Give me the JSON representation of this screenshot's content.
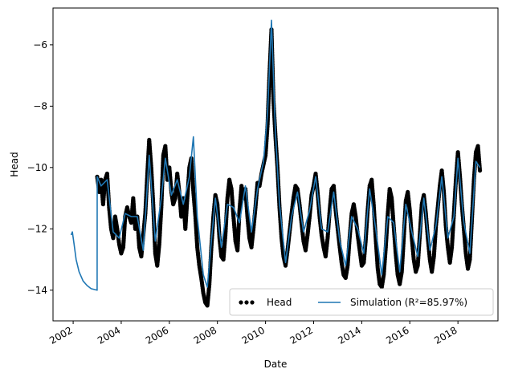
{
  "chart_data": {
    "type": "line",
    "xlabel": "Date",
    "ylabel": "Head",
    "x_range": [
      "2001-03-01",
      "2019-09-01"
    ],
    "ylim": [
      -15.0,
      -4.8
    ],
    "x_ticks": [
      "2002",
      "2004",
      "2006",
      "2008",
      "2010",
      "2012",
      "2014",
      "2016",
      "2018"
    ],
    "y_ticks": [
      -14,
      -12,
      -10,
      -8,
      -6
    ],
    "y_tick_labels": [
      "−14",
      "−12",
      "−10",
      "−8",
      "−6"
    ],
    "grid": false,
    "legend_position": "lower right",
    "colors": {
      "observed": "#000000",
      "simulation": "#1f77b4"
    },
    "series": [
      {
        "name": "Head",
        "style": "dots",
        "points": [
          [
            "2003-01-01",
            -10.3
          ],
          [
            "2003-02-01",
            -10.8
          ],
          [
            "2003-03-01",
            -10.4
          ],
          [
            "2003-04-01",
            -11.2
          ],
          [
            "2003-05-01",
            -10.4
          ],
          [
            "2003-06-01",
            -10.2
          ],
          [
            "2003-07-01",
            -11.3
          ],
          [
            "2003-08-01",
            -12.0
          ],
          [
            "2003-09-01",
            -12.3
          ],
          [
            "2003-10-01",
            -11.6
          ],
          [
            "2003-11-01",
            -12.0
          ],
          [
            "2003-12-01",
            -12.5
          ],
          [
            "2004-01-01",
            -12.8
          ],
          [
            "2004-02-01",
            -12.6
          ],
          [
            "2004-03-01",
            -11.6
          ],
          [
            "2004-04-01",
            -11.3
          ],
          [
            "2004-05-01",
            -11.6
          ],
          [
            "2004-06-01",
            -11.8
          ],
          [
            "2004-07-01",
            -11.0
          ],
          [
            "2004-08-01",
            -12.0
          ],
          [
            "2004-09-01",
            -11.6
          ],
          [
            "2004-10-01",
            -12.6
          ],
          [
            "2004-11-01",
            -12.9
          ],
          [
            "2004-12-01",
            -12.2
          ],
          [
            "2005-01-01",
            -11.5
          ],
          [
            "2005-02-01",
            -10.2
          ],
          [
            "2005-03-01",
            -9.1
          ],
          [
            "2005-04-01",
            -10.0
          ],
          [
            "2005-05-01",
            -11.2
          ],
          [
            "2005-06-01",
            -12.8
          ],
          [
            "2005-07-01",
            -13.2
          ],
          [
            "2005-08-01",
            -12.5
          ],
          [
            "2005-09-01",
            -11.3
          ],
          [
            "2005-10-01",
            -9.6
          ],
          [
            "2005-11-01",
            -9.3
          ],
          [
            "2005-12-01",
            -10.4
          ],
          [
            "2006-01-01",
            -10.0
          ],
          [
            "2006-02-01",
            -10.8
          ],
          [
            "2006-03-01",
            -11.2
          ],
          [
            "2006-04-01",
            -11.0
          ],
          [
            "2006-05-01",
            -10.2
          ],
          [
            "2006-06-01",
            -10.8
          ],
          [
            "2006-07-01",
            -11.6
          ],
          [
            "2006-08-01",
            -11.0
          ],
          [
            "2006-09-01",
            -12.0
          ],
          [
            "2006-10-01",
            -11.0
          ],
          [
            "2006-11-01",
            -10.0
          ],
          [
            "2006-12-01",
            -9.7
          ],
          [
            "2007-01-01",
            -10.8
          ],
          [
            "2007-02-01",
            -11.6
          ],
          [
            "2007-03-01",
            -12.6
          ],
          [
            "2007-04-01",
            -13.2
          ],
          [
            "2007-05-01",
            -13.6
          ],
          [
            "2007-06-01",
            -14.1
          ],
          [
            "2007-07-01",
            -14.4
          ],
          [
            "2007-08-01",
            -14.5
          ],
          [
            "2007-09-01",
            -13.8
          ],
          [
            "2007-10-01",
            -12.6
          ],
          [
            "2007-11-01",
            -11.6
          ],
          [
            "2007-12-01",
            -10.9
          ],
          [
            "2008-01-01",
            -11.2
          ],
          [
            "2008-02-01",
            -12.3
          ],
          [
            "2008-03-01",
            -12.9
          ],
          [
            "2008-04-01",
            -13.0
          ],
          [
            "2008-05-01",
            -12.2
          ],
          [
            "2008-06-01",
            -11.0
          ],
          [
            "2008-07-01",
            -10.4
          ],
          [
            "2008-08-01",
            -10.7
          ],
          [
            "2008-09-01",
            -11.6
          ],
          [
            "2008-10-01",
            -12.4
          ],
          [
            "2008-11-01",
            -12.7
          ],
          [
            "2008-12-01",
            -11.4
          ],
          [
            "2009-01-01",
            -10.6
          ],
          [
            "2009-02-01",
            -11.0
          ],
          [
            "2009-03-01",
            -10.7
          ],
          [
            "2009-04-01",
            -11.6
          ],
          [
            "2009-05-01",
            -12.3
          ],
          [
            "2009-06-01",
            -12.6
          ],
          [
            "2009-07-01",
            -12.0
          ],
          [
            "2009-08-01",
            -11.3
          ],
          [
            "2009-09-01",
            -10.5
          ],
          [
            "2009-10-01",
            -10.6
          ],
          [
            "2009-11-01",
            -10.2
          ],
          [
            "2009-12-01",
            -9.9
          ],
          [
            "2010-01-01",
            -9.6
          ],
          [
            "2010-02-01",
            -8.6
          ],
          [
            "2010-03-01",
            -7.0
          ],
          [
            "2010-04-01",
            -5.5
          ],
          [
            "2010-05-01",
            -7.8
          ],
          [
            "2010-06-01",
            -9.0
          ],
          [
            "2010-07-01",
            -10.0
          ],
          [
            "2010-08-01",
            -11.3
          ],
          [
            "2010-09-01",
            -12.3
          ],
          [
            "2010-10-01",
            -12.9
          ],
          [
            "2010-11-01",
            -13.2
          ],
          [
            "2010-12-01",
            -12.7
          ],
          [
            "2011-01-01",
            -12.1
          ],
          [
            "2011-02-01",
            -11.5
          ],
          [
            "2011-03-01",
            -11.0
          ],
          [
            "2011-04-01",
            -10.6
          ],
          [
            "2011-05-01",
            -10.7
          ],
          [
            "2011-06-01",
            -11.2
          ],
          [
            "2011-07-01",
            -11.8
          ],
          [
            "2011-08-01",
            -12.4
          ],
          [
            "2011-09-01",
            -12.7
          ],
          [
            "2011-10-01",
            -12.2
          ],
          [
            "2011-11-01",
            -11.6
          ],
          [
            "2011-12-01",
            -10.9
          ],
          [
            "2012-01-01",
            -10.6
          ],
          [
            "2012-02-01",
            -10.2
          ],
          [
            "2012-03-01",
            -10.8
          ],
          [
            "2012-04-01",
            -11.6
          ],
          [
            "2012-05-01",
            -12.2
          ],
          [
            "2012-06-01",
            -12.6
          ],
          [
            "2012-07-01",
            -12.9
          ],
          [
            "2012-08-01",
            -12.3
          ],
          [
            "2012-09-01",
            -11.4
          ],
          [
            "2012-10-01",
            -10.7
          ],
          [
            "2012-11-01",
            -10.6
          ],
          [
            "2012-12-01",
            -11.4
          ],
          [
            "2013-01-01",
            -12.0
          ],
          [
            "2013-02-01",
            -12.6
          ],
          [
            "2013-03-01",
            -13.1
          ],
          [
            "2013-04-01",
            -13.5
          ],
          [
            "2013-05-01",
            -13.6
          ],
          [
            "2013-06-01",
            -13.2
          ],
          [
            "2013-07-01",
            -12.3
          ],
          [
            "2013-08-01",
            -11.5
          ],
          [
            "2013-09-01",
            -11.2
          ],
          [
            "2013-10-01",
            -11.6
          ],
          [
            "2013-11-01",
            -12.2
          ],
          [
            "2013-12-01",
            -12.7
          ],
          [
            "2014-01-01",
            -13.2
          ],
          [
            "2014-02-01",
            -13.1
          ],
          [
            "2014-03-01",
            -12.4
          ],
          [
            "2014-04-01",
            -11.4
          ],
          [
            "2014-05-01",
            -10.6
          ],
          [
            "2014-06-01",
            -10.4
          ],
          [
            "2014-07-01",
            -11.2
          ],
          [
            "2014-08-01",
            -12.3
          ],
          [
            "2014-09-01",
            -13.3
          ],
          [
            "2014-10-01",
            -13.8
          ],
          [
            "2014-11-01",
            -13.9
          ],
          [
            "2014-12-01",
            -13.5
          ],
          [
            "2015-01-01",
            -12.6
          ],
          [
            "2015-02-01",
            -11.5
          ],
          [
            "2015-03-01",
            -10.7
          ],
          [
            "2015-04-01",
            -11.0
          ],
          [
            "2015-05-01",
            -11.9
          ],
          [
            "2015-06-01",
            -12.8
          ],
          [
            "2015-07-01",
            -13.5
          ],
          [
            "2015-08-01",
            -13.8
          ],
          [
            "2015-09-01",
            -13.4
          ],
          [
            "2015-10-01",
            -12.3
          ],
          [
            "2015-11-01",
            -11.1
          ],
          [
            "2015-12-01",
            -10.8
          ],
          [
            "2016-01-01",
            -11.4
          ],
          [
            "2016-02-01",
            -12.3
          ],
          [
            "2016-03-01",
            -13.0
          ],
          [
            "2016-04-01",
            -13.4
          ],
          [
            "2016-05-01",
            -13.2
          ],
          [
            "2016-06-01",
            -12.2
          ],
          [
            "2016-07-01",
            -11.2
          ],
          [
            "2016-08-01",
            -10.9
          ],
          [
            "2016-09-01",
            -11.5
          ],
          [
            "2016-10-01",
            -12.3
          ],
          [
            "2016-11-01",
            -13.0
          ],
          [
            "2016-12-01",
            -13.4
          ],
          [
            "2017-01-01",
            -12.9
          ],
          [
            "2017-02-01",
            -11.9
          ],
          [
            "2017-03-01",
            -11.3
          ],
          [
            "2017-04-01",
            -10.6
          ],
          [
            "2017-05-01",
            -10.1
          ],
          [
            "2017-06-01",
            -10.8
          ],
          [
            "2017-07-01",
            -11.9
          ],
          [
            "2017-08-01",
            -12.6
          ],
          [
            "2017-09-01",
            -13.1
          ],
          [
            "2017-10-01",
            -12.6
          ],
          [
            "2017-11-01",
            -11.5
          ],
          [
            "2017-12-01",
            -10.4
          ],
          [
            "2018-01-01",
            -9.5
          ],
          [
            "2018-02-01",
            -10.3
          ],
          [
            "2018-03-01",
            -11.2
          ],
          [
            "2018-04-01",
            -12.0
          ],
          [
            "2018-05-01",
            -12.8
          ],
          [
            "2018-06-01",
            -13.3
          ],
          [
            "2018-07-01",
            -13.0
          ],
          [
            "2018-08-01",
            -11.7
          ],
          [
            "2018-09-01",
            -10.4
          ],
          [
            "2018-10-01",
            -9.5
          ],
          [
            "2018-11-01",
            -9.3
          ],
          [
            "2018-12-01",
            -10.1
          ]
        ]
      },
      {
        "name": "Simulation (R²=85.97%)",
        "style": "line",
        "points": [
          [
            "2001-12-01",
            -12.2
          ],
          [
            "2001-12-20",
            -12.1
          ],
          [
            "2002-01-15",
            -12.5
          ],
          [
            "2002-02-15",
            -13.0
          ],
          [
            "2002-04-01",
            -13.4
          ],
          [
            "2002-06-01",
            -13.7
          ],
          [
            "2002-08-01",
            -13.85
          ],
          [
            "2002-10-01",
            -13.95
          ],
          [
            "2002-12-31",
            -14.0
          ],
          [
            "2003-01-01",
            -10.3
          ],
          [
            "2003-03-01",
            -10.6
          ],
          [
            "2003-06-01",
            -10.4
          ],
          [
            "2003-09-01",
            -12.1
          ],
          [
            "2003-12-01",
            -12.3
          ],
          [
            "2004-03-01",
            -11.5
          ],
          [
            "2004-06-01",
            -11.6
          ],
          [
            "2004-09-01",
            -11.6
          ],
          [
            "2004-12-01",
            -12.7
          ],
          [
            "2005-03-01",
            -9.6
          ],
          [
            "2005-06-01",
            -12.4
          ],
          [
            "2005-09-01",
            -11.0
          ],
          [
            "2005-11-01",
            -9.7
          ],
          [
            "2006-02-01",
            -10.9
          ],
          [
            "2006-05-01",
            -10.4
          ],
          [
            "2006-08-01",
            -11.2
          ],
          [
            "2006-11-01",
            -10.3
          ],
          [
            "2007-01-01",
            -9.0
          ],
          [
            "2007-03-01",
            -11.6
          ],
          [
            "2007-06-01",
            -13.5
          ],
          [
            "2007-08-01",
            -13.9
          ],
          [
            "2007-10-01",
            -12.4
          ],
          [
            "2007-12-01",
            -11.0
          ],
          [
            "2008-03-01",
            -12.6
          ],
          [
            "2008-06-01",
            -11.2
          ],
          [
            "2008-09-01",
            -11.3
          ],
          [
            "2008-12-01",
            -11.8
          ],
          [
            "2009-03-01",
            -10.6
          ],
          [
            "2009-06-01",
            -12.1
          ],
          [
            "2009-09-01",
            -10.7
          ],
          [
            "2009-12-01",
            -9.8
          ],
          [
            "2010-02-01",
            -8.2
          ],
          [
            "2010-04-01",
            -5.2
          ],
          [
            "2010-06-01",
            -8.9
          ],
          [
            "2010-08-01",
            -11.2
          ],
          [
            "2010-11-01",
            -13.1
          ],
          [
            "2011-02-01",
            -11.6
          ],
          [
            "2011-05-01",
            -10.8
          ],
          [
            "2011-08-01",
            -12.1
          ],
          [
            "2011-11-01",
            -11.4
          ],
          [
            "2012-02-01",
            -10.3
          ],
          [
            "2012-05-01",
            -12.0
          ],
          [
            "2012-08-01",
            -12.1
          ],
          [
            "2012-11-01",
            -10.8
          ],
          [
            "2013-02-01",
            -12.4
          ],
          [
            "2013-05-01",
            -13.2
          ],
          [
            "2013-08-01",
            -11.6
          ],
          [
            "2013-11-01",
            -12.0
          ],
          [
            "2014-02-01",
            -12.8
          ],
          [
            "2014-05-01",
            -10.7
          ],
          [
            "2014-08-01",
            -12.0
          ],
          [
            "2014-11-01",
            -13.5
          ],
          [
            "2015-02-01",
            -11.6
          ],
          [
            "2015-05-01",
            -11.8
          ],
          [
            "2015-08-01",
            -13.4
          ],
          [
            "2015-11-01",
            -11.2
          ],
          [
            "2016-02-01",
            -12.1
          ],
          [
            "2016-05-01",
            -12.9
          ],
          [
            "2016-08-01",
            -11.0
          ],
          [
            "2016-11-01",
            -12.7
          ],
          [
            "2017-02-01",
            -11.9
          ],
          [
            "2017-05-01",
            -10.3
          ],
          [
            "2017-08-01",
            -12.3
          ],
          [
            "2017-11-01",
            -11.6
          ],
          [
            "2018-01-01",
            -9.7
          ],
          [
            "2018-04-01",
            -11.8
          ],
          [
            "2018-07-01",
            -12.8
          ],
          [
            "2018-10-01",
            -9.8
          ],
          [
            "2018-12-01",
            -10.0
          ]
        ]
      }
    ]
  }
}
